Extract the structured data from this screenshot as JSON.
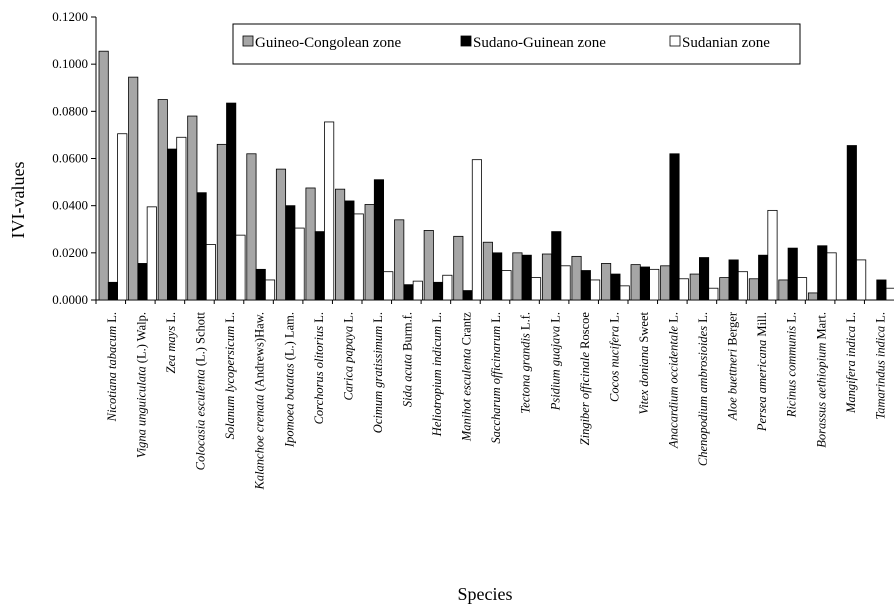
{
  "chart_data": {
    "type": "bar",
    "title": "",
    "ylabel": "IVI-values",
    "xlabel": "Species",
    "ylim": [
      0,
      0.12
    ],
    "yticks": [
      "0.0000",
      "0.0200",
      "0.0400",
      "0.0600",
      "0.0800",
      "0.1000",
      "0.1200"
    ],
    "legend_position": "top-right",
    "grid": false,
    "categories": [
      {
        "name": "Nicotiana tabacum",
        "author": "L."
      },
      {
        "name": "Vigna unguiculata",
        "author": "(L.) Walp."
      },
      {
        "name": "Zea mays",
        "author": "L."
      },
      {
        "name": "Colocasia esculenta",
        "author": "(L.) Schott"
      },
      {
        "name": "Solanum lycopersicum",
        "author": "L."
      },
      {
        "name": "Kalanchoe crenata",
        "author": "(Andrews)Haw."
      },
      {
        "name": "Ipomoea batatas",
        "author": "(L.) Lam."
      },
      {
        "name": "Corchorus olitorius",
        "author": "L."
      },
      {
        "name": "Carica papaya",
        "author": "L."
      },
      {
        "name": "Ocimum gratissimum",
        "author": "L."
      },
      {
        "name": "Sida acuta",
        "author": "Burm.f."
      },
      {
        "name": "Heliotropium indicum",
        "author": "L."
      },
      {
        "name": "Manihot esculenta",
        "author": "Crantz"
      },
      {
        "name": "Saccharum officinarum",
        "author": "L."
      },
      {
        "name": "Tectona grandis",
        "author": "L.f."
      },
      {
        "name": "Psidium guajava",
        "author": "L."
      },
      {
        "name": "Zingiber officinale",
        "author": "Roscoe"
      },
      {
        "name": "Cocos nucifera",
        "author": "L."
      },
      {
        "name": "Vitex doniana",
        "author": "Sweet"
      },
      {
        "name": "Anacardium occidentale",
        "author": "L."
      },
      {
        "name": "Chenopodium ambrosioides",
        "author": "L."
      },
      {
        "name": "Aloe buettneri",
        "author": "Berger"
      },
      {
        "name": "Persea americana",
        "author": "Mill."
      },
      {
        "name": "Ricinus communis",
        "author": "L."
      },
      {
        "name": "Borassus aethiopium",
        "author": "Mart."
      },
      {
        "name": "Mangifera indica",
        "author": "L."
      },
      {
        "name": "Tamarindus indica",
        "author": "L."
      }
    ],
    "series": [
      {
        "name": "Guineo-Congolean zone",
        "color": "#a6a6a6",
        "values": [
          0.1055,
          0.0945,
          0.085,
          0.078,
          0.066,
          0.062,
          0.0555,
          0.0475,
          0.047,
          0.0405,
          0.034,
          0.0295,
          0.027,
          0.0245,
          0.02,
          0.0195,
          0.0185,
          0.0155,
          0.015,
          0.0145,
          0.011,
          0.0095,
          0.009,
          0.0085,
          0.003,
          0.0,
          0.0
        ]
      },
      {
        "name": "Sudano-Guinean zone",
        "color": "#000000",
        "values": [
          0.0075,
          0.0155,
          0.064,
          0.0455,
          0.0835,
          0.013,
          0.04,
          0.029,
          0.042,
          0.051,
          0.0065,
          0.0075,
          0.004,
          0.02,
          0.019,
          0.029,
          0.0125,
          0.011,
          0.014,
          0.062,
          0.018,
          0.017,
          0.019,
          0.022,
          0.023,
          0.0655,
          0.0085
        ]
      },
      {
        "name": "Sudanian zone",
        "color": "#ffffff",
        "values": [
          0.0705,
          0.0395,
          0.069,
          0.0235,
          0.0275,
          0.0085,
          0.0305,
          0.0755,
          0.0365,
          0.012,
          0.008,
          0.0105,
          0.0595,
          0.0125,
          0.0095,
          0.0145,
          0.0085,
          0.006,
          0.013,
          0.009,
          0.005,
          0.012,
          0.038,
          0.0095,
          0.02,
          0.017,
          0.005
        ]
      }
    ]
  }
}
